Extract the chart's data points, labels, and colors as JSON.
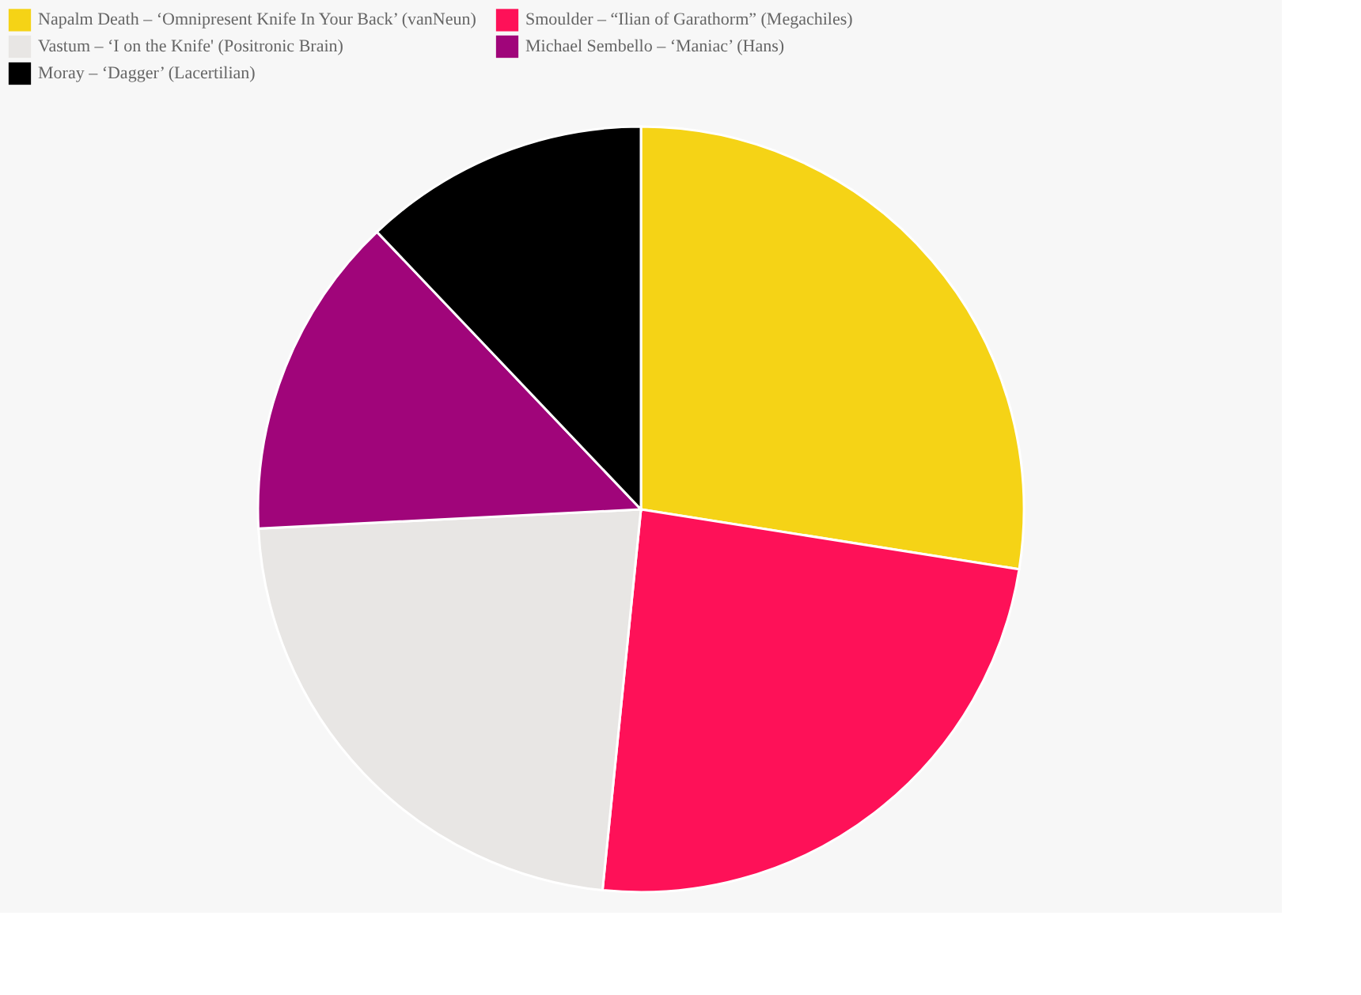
{
  "chart_data": {
    "type": "pie",
    "categories": [
      "Napalm Death – ‘Omnipresent Knife In Your Back’ (vanNeun)",
      "Smoulder – “Ilian of Garathorm” (Megachiles)",
      "Vastum – ‘I on the Knife' (Positronic Brain)",
      "Michael Sembello – ‘Maniac’ (Hans)",
      "Moray – ‘Dagger’ (Lacertilian)"
    ],
    "values": [
      27.5,
      24.1,
      22.6,
      13.7,
      12.1
    ],
    "colors": [
      "#f5d316",
      "#fe1158",
      "#e8e6e4",
      "#a0057a",
      "#000000"
    ],
    "legend": "top"
  }
}
